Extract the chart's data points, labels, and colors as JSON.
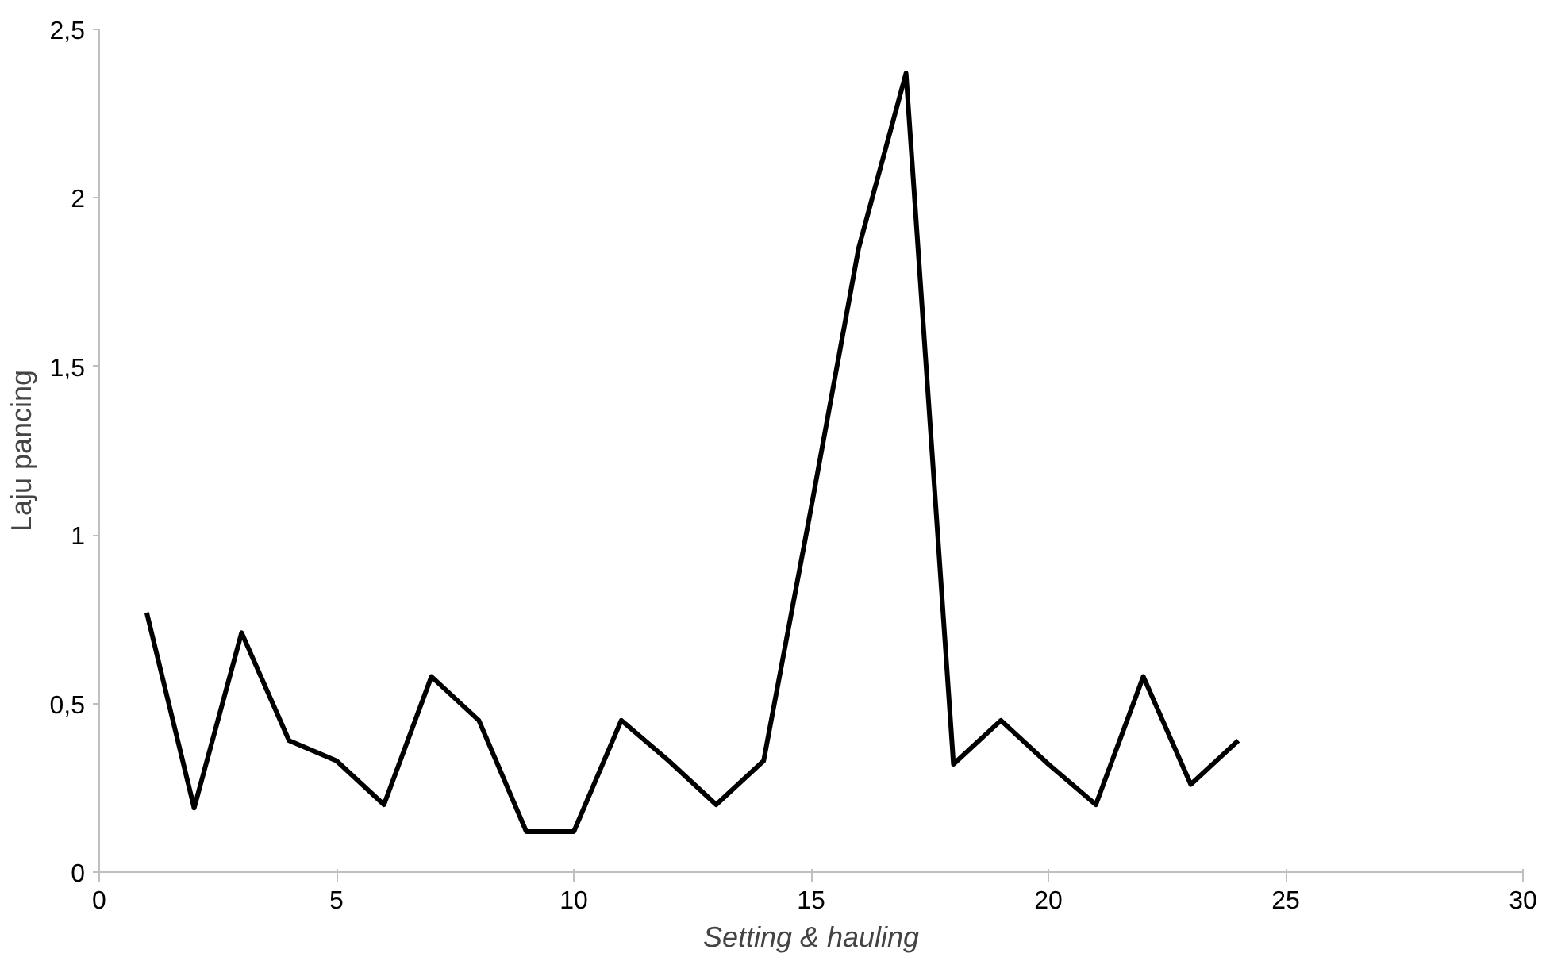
{
  "chart_data": {
    "type": "line",
    "xlabel": "Setting & hauling",
    "ylabel": "Laju pancing",
    "x": [
      1,
      2,
      3,
      4,
      5,
      6,
      7,
      8,
      9,
      10,
      11,
      12,
      13,
      14,
      15,
      16,
      17,
      18,
      19,
      20,
      21,
      22,
      23,
      24
    ],
    "series": [
      {
        "color": "#000000",
        "values": [
          0.77,
          0.19,
          0.71,
          0.39,
          0.33,
          0.2,
          0.58,
          0.45,
          0.12,
          0.12,
          0.45,
          0.33,
          0.2,
          0.33,
          1.08,
          1.85,
          2.37,
          0.32,
          0.45,
          0.32,
          0.2,
          0.58,
          0.26,
          0.39
        ]
      }
    ],
    "xlim": [
      0,
      30
    ],
    "xticks": [
      0,
      5,
      10,
      15,
      20,
      25,
      30
    ],
    "ylim": [
      0,
      2.5
    ],
    "yticks": [
      0,
      {
        "value": 0.5,
        "label": "0,5"
      },
      1,
      {
        "value": 1.5,
        "label": "1,5"
      },
      2,
      {
        "value": 2.5,
        "label": "2,5"
      }
    ],
    "grid": false,
    "marker": "none",
    "line_style": "solid"
  }
}
